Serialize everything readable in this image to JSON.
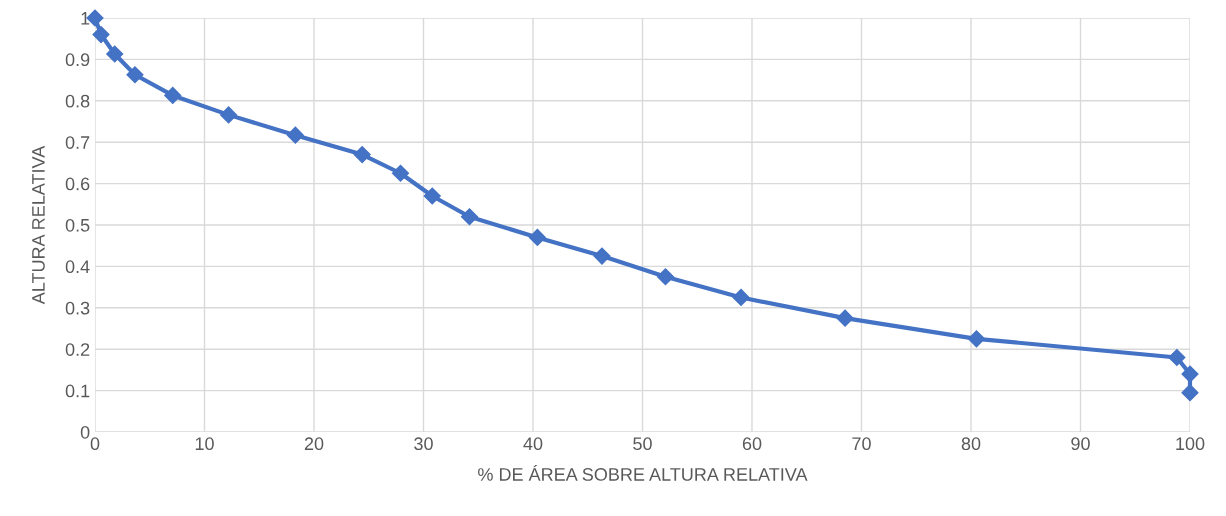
{
  "chart_data": {
    "type": "line",
    "xlabel": "% DE ÁREA SOBRE ALTURA RELATIVA",
    "ylabel": "ALTURA RELATIVA",
    "series": [
      {
        "color": "#4472c4",
        "x": [
          0,
          0.55,
          1.8,
          3.65,
          7.1,
          12.2,
          18.3,
          24.4,
          27.9,
          30.8,
          34.2,
          40.4,
          46.3,
          52.1,
          59.0,
          68.5,
          80.5,
          98.8,
          100,
          100
        ],
        "values": [
          1.0,
          0.96,
          0.913,
          0.863,
          0.813,
          0.766,
          0.717,
          0.67,
          0.625,
          0.57,
          0.52,
          0.47,
          0.425,
          0.375,
          0.325,
          0.275,
          0.225,
          0.18,
          0.14,
          0.095
        ]
      }
    ],
    "xlim": [
      0,
      100
    ],
    "xticks": [
      0,
      10,
      20,
      30,
      40,
      50,
      60,
      70,
      80,
      90,
      100
    ],
    "ylim": [
      0,
      1
    ],
    "yticks": [
      0,
      {
        "value": 0.1,
        "label": "0.1"
      },
      {
        "value": 0.2,
        "label": "0.2"
      },
      {
        "value": 0.3,
        "label": "0.3"
      },
      {
        "value": 0.4,
        "label": "0.4"
      },
      {
        "value": 0.5,
        "label": "0.5"
      },
      {
        "value": 0.6,
        "label": "0.6"
      },
      {
        "value": 0.7,
        "label": "0.7"
      },
      {
        "value": 0.8,
        "label": "0.8"
      },
      {
        "value": 0.9,
        "label": "0.9"
      },
      1
    ],
    "grid": true,
    "marker": "diamond",
    "line_style": "solid",
    "legend": false
  }
}
